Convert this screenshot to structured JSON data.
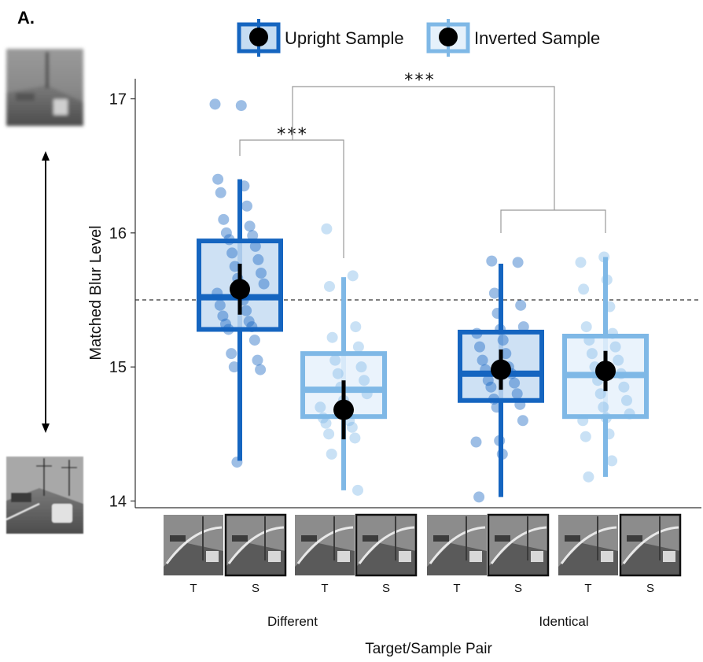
{
  "panel_label": "A.",
  "chart_data": {
    "type": "box",
    "ylabel": "Matched Blur Level",
    "xlabel": "Target/Sample Pair",
    "ylim": [
      13.95,
      17.15
    ],
    "yticks": [
      14,
      15,
      16,
      17
    ],
    "reference_line": 15.5,
    "legend": {
      "position": "top",
      "entries": [
        {
          "name": "Upright Sample",
          "color": "#1565c0",
          "fill": "#c5dcf2"
        },
        {
          "name": "Inverted Sample",
          "color": "#7fb8e6",
          "fill": "#e6f1fb"
        }
      ]
    },
    "groups": [
      {
        "label": "Different",
        "sub_labels": [
          "T",
          "S",
          "T",
          "S"
        ]
      },
      {
        "label": "Identical",
        "sub_labels": [
          "T",
          "S",
          "T",
          "S"
        ]
      }
    ],
    "boxes": [
      {
        "group": "Different",
        "series": "Upright Sample",
        "q1": 15.28,
        "median": 15.52,
        "q3": 15.94,
        "whisker_low": 14.3,
        "whisker_high": 16.4,
        "mean": 15.58,
        "ci_low": 15.39,
        "ci_high": 15.77,
        "points": [
          16.96,
          16.95,
          16.4,
          16.35,
          16.3,
          16.2,
          16.1,
          16.05,
          16.0,
          15.98,
          15.95,
          15.9,
          15.85,
          15.8,
          15.75,
          15.7,
          15.66,
          15.62,
          15.58,
          15.55,
          15.5,
          15.46,
          15.42,
          15.38,
          15.34,
          15.32,
          15.3,
          15.28,
          15.2,
          15.1,
          15.05,
          15.0,
          14.98,
          14.29
        ]
      },
      {
        "group": "Different",
        "series": "Inverted Sample",
        "q1": 14.63,
        "median": 14.83,
        "q3": 15.1,
        "whisker_low": 14.08,
        "whisker_high": 15.67,
        "mean": 14.68,
        "ci_low": 14.46,
        "ci_high": 14.9,
        "points": [
          16.03,
          15.68,
          15.6,
          15.3,
          15.22,
          15.15,
          15.05,
          15.0,
          14.95,
          14.9,
          14.85,
          14.8,
          14.75,
          14.7,
          14.65,
          14.62,
          14.6,
          14.58,
          14.55,
          14.5,
          14.47,
          14.35,
          14.08
        ]
      },
      {
        "group": "Identical",
        "series": "Upright Sample",
        "q1": 14.75,
        "median": 14.95,
        "q3": 15.26,
        "whisker_low": 14.03,
        "whisker_high": 15.77,
        "mean": 14.98,
        "ci_low": 14.83,
        "ci_high": 15.13,
        "points": [
          15.79,
          15.78,
          15.55,
          15.46,
          15.4,
          15.3,
          15.28,
          15.25,
          15.2,
          15.15,
          15.1,
          15.05,
          15.0,
          14.98,
          14.95,
          14.9,
          14.88,
          14.85,
          14.8,
          14.76,
          14.72,
          14.7,
          14.6,
          14.45,
          14.44,
          14.35,
          14.03
        ]
      },
      {
        "group": "Identical",
        "series": "Inverted Sample",
        "q1": 14.63,
        "median": 14.94,
        "q3": 15.23,
        "whisker_low": 14.18,
        "whisker_high": 15.82,
        "mean": 14.97,
        "ci_low": 14.82,
        "ci_high": 15.12,
        "points": [
          15.82,
          15.78,
          15.65,
          15.58,
          15.45,
          15.3,
          15.25,
          15.2,
          15.15,
          15.1,
          15.05,
          15.0,
          14.95,
          14.9,
          14.85,
          14.8,
          14.75,
          14.7,
          14.65,
          14.62,
          14.6,
          14.5,
          14.48,
          14.3,
          14.18
        ]
      }
    ],
    "significance": [
      {
        "label": "***",
        "type": "within-group",
        "group": "Different"
      },
      {
        "label": "***",
        "type": "between-group",
        "groups": [
          "Different",
          "Identical"
        ]
      }
    ]
  }
}
